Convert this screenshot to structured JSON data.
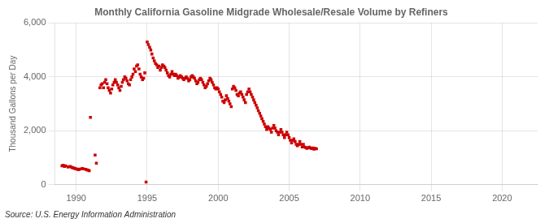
{
  "chart_data": {
    "type": "scatter",
    "title": "Monthly California Gasoline Midgrade Wholesale/Resale Volume by Refiners",
    "ylabel": "Thousand Gallons per Day",
    "annotations": [
      "Source: U.S. Energy Information Administration"
    ],
    "color": "#cc0000",
    "marker": "square",
    "grid": true,
    "xlim": [
      1988.5,
      2022.5
    ],
    "ylim": [
      0,
      6000
    ],
    "xticks": [
      1990,
      1995,
      2000,
      2005,
      2010,
      2015,
      2020
    ],
    "yticks": [
      0,
      {
        "value": 2000,
        "label": "2,000"
      },
      {
        "value": 4000,
        "label": "4,000"
      },
      {
        "value": 6000,
        "label": "6,000"
      }
    ],
    "x": [
      1989.0,
      1989.08,
      1989.17,
      1989.25,
      1989.42,
      1989.58,
      1989.67,
      1989.75,
      1989.83,
      1989.92,
      1990.0,
      1990.08,
      1990.17,
      1990.25,
      1990.42,
      1990.5,
      1990.67,
      1990.75,
      1990.83,
      1990.92,
      1991.0,
      1991.33,
      1991.42,
      1991.67,
      1991.75,
      1991.83,
      1991.92,
      1992.0,
      1992.08,
      1992.17,
      1992.25,
      1992.33,
      1992.42,
      1992.5,
      1992.58,
      1992.67,
      1992.75,
      1992.83,
      1992.92,
      1993.0,
      1993.08,
      1993.17,
      1993.25,
      1993.33,
      1993.42,
      1993.5,
      1993.58,
      1993.67,
      1993.75,
      1993.83,
      1993.92,
      1994.0,
      1994.08,
      1994.17,
      1994.25,
      1994.33,
      1994.42,
      1994.5,
      1994.58,
      1994.67,
      1994.75,
      1994.83,
      1994.92,
      1995.0,
      1995.08,
      1995.17,
      1995.25,
      1995.33,
      1995.42,
      1995.5,
      1995.58,
      1995.67,
      1995.75,
      1995.83,
      1995.92,
      1996.0,
      1996.08,
      1996.17,
      1996.25,
      1996.33,
      1996.42,
      1996.5,
      1996.58,
      1996.67,
      1996.75,
      1996.83,
      1996.92,
      1997.0,
      1997.08,
      1997.17,
      1997.25,
      1997.33,
      1997.42,
      1997.5,
      1997.58,
      1997.67,
      1997.75,
      1997.83,
      1997.92,
      1998.0,
      1998.08,
      1998.17,
      1998.25,
      1998.33,
      1998.42,
      1998.5,
      1998.58,
      1998.67,
      1998.75,
      1998.83,
      1998.92,
      1999.0,
      1999.08,
      1999.17,
      1999.25,
      1999.33,
      1999.42,
      1999.5,
      1999.58,
      1999.67,
      1999.75,
      1999.83,
      1999.92,
      2000.0,
      2000.08,
      2000.17,
      2000.25,
      2000.33,
      2000.42,
      2000.5,
      2000.58,
      2000.67,
      2000.75,
      2000.83,
      2000.92,
      2001.0,
      2001.08,
      2001.17,
      2001.25,
      2001.33,
      2001.42,
      2001.5,
      2001.58,
      2001.67,
      2001.75,
      2001.83,
      2001.92,
      2002.0,
      2002.08,
      2002.17,
      2002.25,
      2002.33,
      2002.42,
      2002.5,
      2002.58,
      2002.67,
      2002.75,
      2002.83,
      2002.92,
      2003.0,
      2003.08,
      2003.17,
      2003.25,
      2003.33,
      2003.42,
      2003.5,
      2003.58,
      2003.67,
      2003.75,
      2003.83,
      2003.92,
      2004.0,
      2004.08,
      2004.17,
      2004.25,
      2004.33,
      2004.42,
      2004.5,
      2004.58,
      2004.67,
      2004.75,
      2004.83,
      2004.92,
      2005.0,
      2005.08,
      2005.17,
      2005.25,
      2005.33,
      2005.42,
      2005.5,
      2005.58,
      2005.67,
      2005.75,
      2005.83,
      2005.92,
      2006.0,
      2006.08,
      2006.17,
      2006.25,
      2006.33,
      2006.42,
      2006.5,
      2006.58,
      2006.67,
      2006.75,
      2006.83,
      2006.92
    ],
    "values": [
      700,
      720,
      680,
      700,
      660,
      680,
      650,
      630,
      620,
      600,
      590,
      570,
      560,
      580,
      600,
      590,
      570,
      550,
      540,
      520,
      2500,
      1100,
      800,
      3600,
      3700,
      3750,
      3600,
      3800,
      3900,
      3750,
      3600,
      3500,
      3400,
      3550,
      3700,
      3800,
      3900,
      3800,
      3700,
      3600,
      3500,
      3650,
      3800,
      3900,
      4000,
      3950,
      3850,
      3750,
      3700,
      3900,
      4000,
      4100,
      4300,
      4200,
      4400,
      4450,
      4300,
      4100,
      4000,
      3900,
      3950,
      4150,
      100,
      5300,
      5200,
      5100,
      5000,
      4850,
      4700,
      4600,
      4500,
      4450,
      4350,
      4400,
      4250,
      4350,
      4450,
      4400,
      4350,
      4250,
      4150,
      4050,
      4000,
      4100,
      4200,
      4100,
      4050,
      4100,
      4050,
      3950,
      4000,
      4050,
      4000,
      3950,
      3900,
      3950,
      4000,
      3950,
      3850,
      3900,
      4000,
      4050,
      4000,
      3950,
      3850,
      3750,
      3800,
      3900,
      3950,
      3900,
      3800,
      3700,
      3600,
      3650,
      3750,
      3850,
      3950,
      3900,
      3800,
      3700,
      3600,
      3550,
      3600,
      3550,
      3450,
      3350,
      3250,
      3100,
      3050,
      3150,
      3300,
      3200,
      3100,
      3000,
      2900,
      3550,
      3650,
      3600,
      3500,
      3350,
      3300,
      3400,
      3450,
      3350,
      3250,
      3150,
      3050,
      3350,
      3450,
      3550,
      3450,
      3350,
      3250,
      3150,
      3050,
      2950,
      2850,
      2750,
      2650,
      2550,
      2450,
      2350,
      2250,
      2150,
      2050,
      2150,
      2100,
      2050,
      1950,
      2100,
      2200,
      2100,
      2000,
      1950,
      1850,
      1950,
      2050,
      1950,
      1850,
      1750,
      1850,
      1950,
      1850,
      1750,
      1650,
      1550,
      1650,
      1700,
      1600,
      1500,
      1450,
      1500,
      1600,
      1500,
      1400,
      1500,
      1400,
      1380,
      1350,
      1370,
      1390,
      1360,
      1340,
      1360,
      1320,
      1350,
      1330
    ]
  }
}
